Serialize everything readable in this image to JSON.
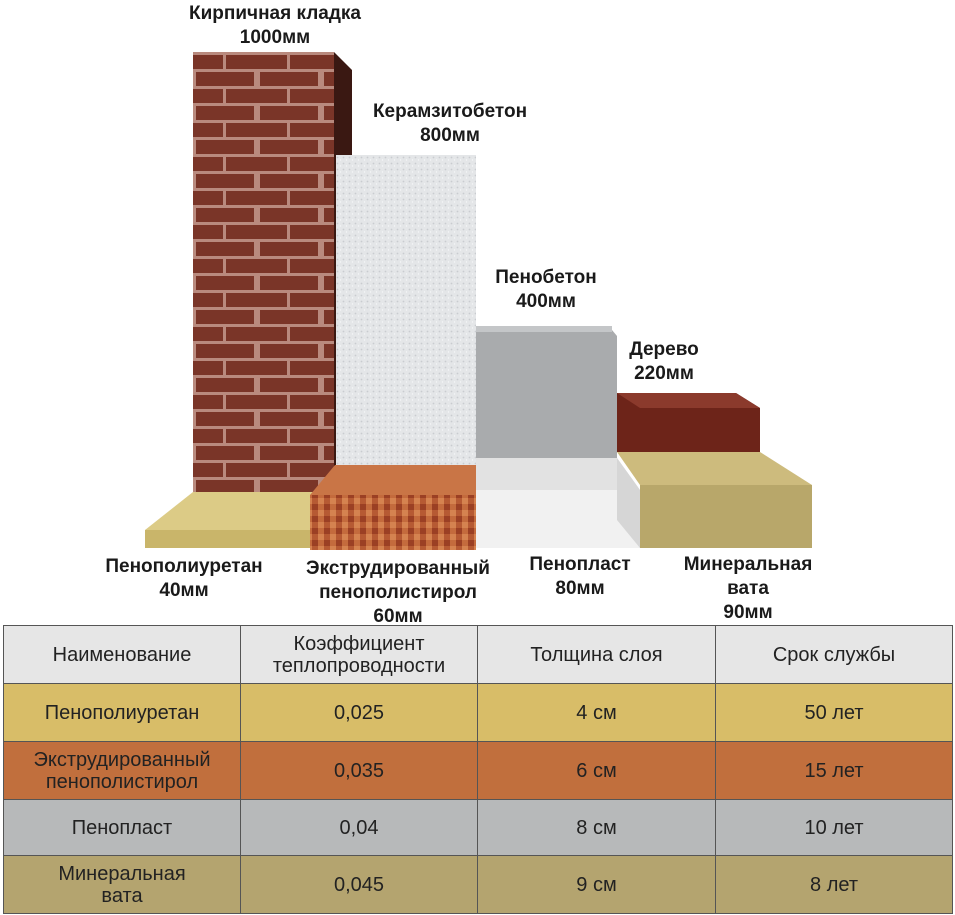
{
  "materials_top": [
    {
      "name": "Кирпичная кладка",
      "thickness": "1000мм"
    },
    {
      "name": "Керамзитобетон",
      "thickness": "800мм"
    },
    {
      "name": "Пенобетон",
      "thickness": "400мм"
    },
    {
      "name": "Дерево",
      "thickness": "220мм"
    }
  ],
  "materials_bottom": [
    {
      "name_lines": [
        "Пенополиуретан"
      ],
      "thickness": "40мм"
    },
    {
      "name_lines": [
        "Экструдированный",
        "пенополистирол"
      ],
      "thickness": "60мм"
    },
    {
      "name_lines": [
        "Пенопласт"
      ],
      "thickness": "80мм"
    },
    {
      "name_lines": [
        "Минеральная",
        "вата"
      ],
      "thickness": "90мм"
    }
  ],
  "colors": {
    "brick": "#7a3528",
    "keramzit": "#e4e6e8",
    "penobeton": "#a9abad",
    "wood": "#6d2419",
    "ppu": "#d8c57a",
    "eps": "#b65a33",
    "penoplast": "#efefef",
    "minvata": "#b8a76a"
  },
  "table": {
    "headers": [
      [
        "Наименование"
      ],
      [
        "Коэффициент",
        "теплопроводности"
      ],
      [
        "Толщина слоя"
      ],
      [
        "Срок службы"
      ]
    ],
    "rows": [
      {
        "name_lines": [
          "Пенополиуретан"
        ],
        "coef": "0,025",
        "thickness": "4 см",
        "life": "50 лет",
        "bg": "#d8bd68"
      },
      {
        "name_lines": [
          "Экструдированный",
          "пенополистирол"
        ],
        "coef": "0,035",
        "thickness": "6 см",
        "life": "15 лет",
        "bg": "#c16f3d"
      },
      {
        "name_lines": [
          "Пенопласт"
        ],
        "coef": "0,04",
        "thickness": "8 см",
        "life": "10 лет",
        "bg": "#b7b9ba"
      },
      {
        "name_lines": [
          "Минеральная",
          "вата"
        ],
        "coef": "0,045",
        "thickness": "9 см",
        "life": "8 лет",
        "bg": "#b4a46f"
      }
    ]
  }
}
